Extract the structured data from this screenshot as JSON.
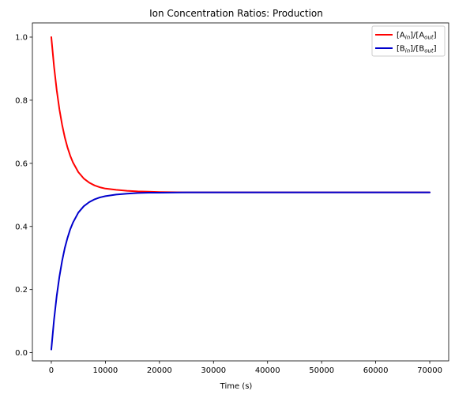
{
  "chart_data": {
    "type": "line",
    "title": "Ion Concentration Ratios: Production",
    "xlabel": "Time (s)",
    "ylabel": "",
    "xlim": [
      -3500,
      73500
    ],
    "ylim": [
      -0.026,
      1.045
    ],
    "xticks": [
      0,
      10000,
      20000,
      30000,
      40000,
      50000,
      60000,
      70000
    ],
    "yticks": [
      0.0,
      0.2,
      0.4,
      0.6,
      0.8,
      1.0
    ],
    "xtick_labels": [
      "0",
      "10000",
      "20000",
      "30000",
      "40000",
      "50000",
      "60000",
      "70000"
    ],
    "ytick_labels": [
      "0.0",
      "0.2",
      "0.4",
      "0.6",
      "0.8",
      "1.0"
    ],
    "grid": false,
    "legend_position": "top-right",
    "series": [
      {
        "color": "#ff0000",
        "legend_parts": [
          [
            "[A",
            ""
          ],
          [
            "in",
            "sub"
          ],
          [
            "]/[A",
            ""
          ],
          [
            "out",
            "sub"
          ],
          [
            "]",
            ""
          ]
        ],
        "x": [
          0,
          500,
          1000,
          1500,
          2000,
          2500,
          3000,
          3500,
          4000,
          5000,
          6000,
          7000,
          8000,
          9000,
          10000,
          12000,
          14000,
          16000,
          18000,
          20000,
          25000,
          30000,
          40000,
          50000,
          60000,
          70000
        ],
        "y": [
          1.0,
          0.907,
          0.832,
          0.771,
          0.722,
          0.682,
          0.65,
          0.624,
          0.603,
          0.572,
          0.552,
          0.539,
          0.53,
          0.524,
          0.52,
          0.516,
          0.513,
          0.511,
          0.51,
          0.509,
          0.508,
          0.508,
          0.508,
          0.508,
          0.508,
          0.508
        ]
      },
      {
        "color": "#0000cc",
        "legend_parts": [
          [
            "[B",
            ""
          ],
          [
            "in",
            "sub"
          ],
          [
            "]/[B",
            ""
          ],
          [
            "out",
            "sub"
          ],
          [
            "]",
            ""
          ]
        ],
        "x": [
          0,
          500,
          1000,
          1500,
          2000,
          2500,
          3000,
          3500,
          4000,
          5000,
          6000,
          7000,
          8000,
          9000,
          10000,
          12000,
          14000,
          16000,
          18000,
          20000,
          25000,
          30000,
          40000,
          50000,
          60000,
          70000
        ],
        "y": [
          0.01,
          0.104,
          0.18,
          0.241,
          0.291,
          0.332,
          0.364,
          0.391,
          0.412,
          0.444,
          0.464,
          0.477,
          0.486,
          0.492,
          0.496,
          0.501,
          0.504,
          0.506,
          0.507,
          0.507,
          0.508,
          0.508,
          0.508,
          0.508,
          0.508,
          0.508
        ]
      }
    ]
  }
}
